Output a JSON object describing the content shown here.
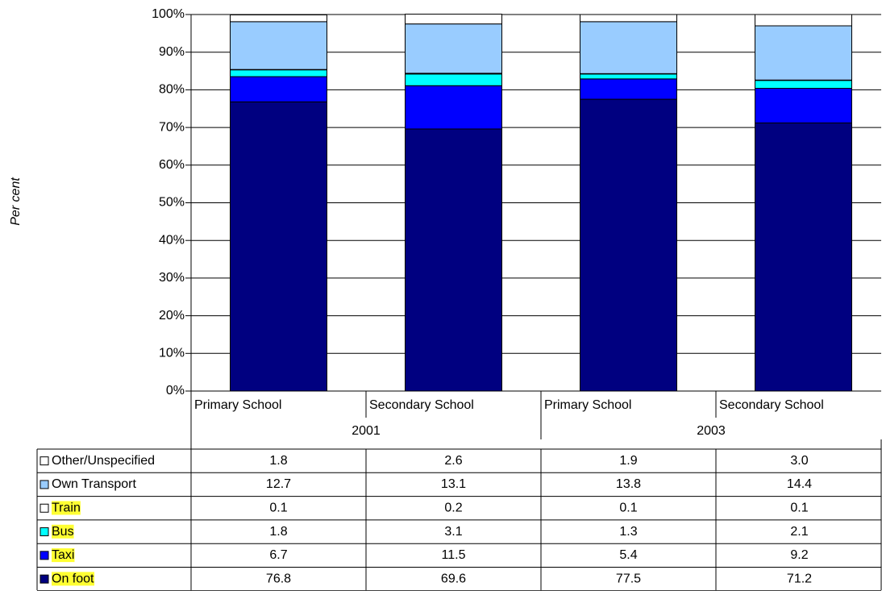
{
  "chart_data": {
    "type": "stacked_bar",
    "y_label": "Per cent",
    "groups": [
      {
        "name": "2001",
        "categories": [
          "Primary School",
          "Secondary School"
        ]
      },
      {
        "name": "2003",
        "categories": [
          "Primary School",
          "Secondary School"
        ]
      }
    ],
    "series": [
      {
        "name": "On foot",
        "color": "#000080",
        "highlight": true,
        "values": [
          76.8,
          69.6,
          77.5,
          71.2
        ],
        "value_labels": [
          "76.8",
          "69.6",
          "77.5",
          "71.2"
        ]
      },
      {
        "name": "Taxi",
        "color": "#0000ff",
        "highlight": true,
        "values": [
          6.7,
          11.5,
          5.4,
          9.2
        ],
        "value_labels": [
          "6.7",
          "11.5",
          "5.4",
          "9.2"
        ]
      },
      {
        "name": "Bus",
        "color": "#00ffff",
        "highlight": true,
        "values": [
          1.8,
          3.1,
          1.3,
          2.1
        ],
        "value_labels": [
          "1.8",
          "3.1",
          "1.3",
          "2.1"
        ]
      },
      {
        "name": "Train",
        "color": "#ffffff",
        "highlight": true,
        "values": [
          0.1,
          0.2,
          0.1,
          0.1
        ],
        "value_labels": [
          "0.1",
          "0.2",
          "0.1",
          "0.1"
        ]
      },
      {
        "name": "Own Transport",
        "color": "#99ccff",
        "highlight": false,
        "values": [
          12.7,
          13.1,
          13.8,
          14.4
        ],
        "value_labels": [
          "12.7",
          "13.1",
          "13.8",
          "14.4"
        ]
      },
      {
        "name": "Other/Unspecified",
        "color": "#ffffff",
        "highlight": false,
        "values": [
          1.8,
          2.6,
          1.9,
          3.0
        ],
        "value_labels": [
          "1.8",
          "2.6",
          "1.9",
          "3.0"
        ]
      }
    ],
    "ylim": [
      0,
      100
    ],
    "yticks": [
      {
        "value": 0,
        "label": "0%"
      },
      {
        "value": 10,
        "label": "10%"
      },
      {
        "value": 20,
        "label": "20%"
      },
      {
        "value": 30,
        "label": "30%"
      },
      {
        "value": 40,
        "label": "40%"
      },
      {
        "value": 50,
        "label": "50%"
      },
      {
        "value": 60,
        "label": "60%"
      },
      {
        "value": 70,
        "label": "70%"
      },
      {
        "value": 80,
        "label": "80%"
      },
      {
        "value": 90,
        "label": "90%"
      },
      {
        "value": 100,
        "label": "100%"
      }
    ],
    "grid": true
  }
}
